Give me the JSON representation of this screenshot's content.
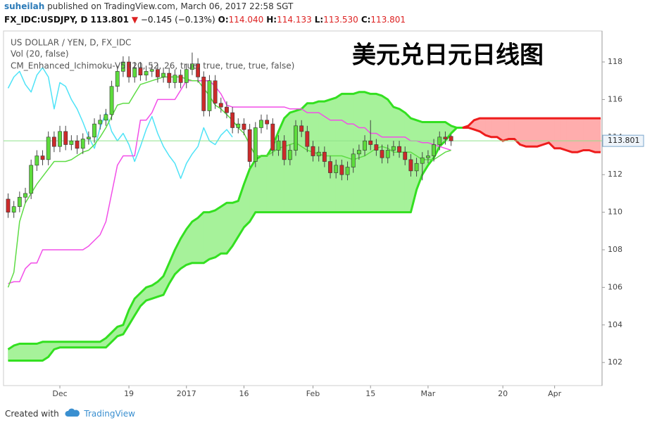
{
  "header": {
    "user": "suheilah",
    "published": "published on TradingView.com, March 06, 2017 22:58 SGT",
    "symbol": "FX_IDC:USDJPY, D",
    "last": "113.801",
    "change": "−0.145 (−0.13%)",
    "ohlc": [
      {
        "label": "O:",
        "value": "114.040"
      },
      {
        "label": "H:",
        "value": "114.133"
      },
      {
        "label": "L:",
        "value": "113.530"
      },
      {
        "label": "C:",
        "value": "113.801"
      }
    ]
  },
  "footer": {
    "created": "Created with",
    "brand": "TradingView"
  },
  "chart_data": {
    "type": "candlestick",
    "title": "US DOLLAR / YEN, D, FX_IDC",
    "subtitles": [
      "Vol (20, false)",
      "CM_Enhanced_Ichimoku-V5 (20, 52, 26, true, true, true, true, false)"
    ],
    "annotation": "美元兑日元日线图",
    "categories": [
      null,
      null,
      null,
      null,
      null,
      null,
      null,
      null,
      null,
      "Dec",
      null,
      null,
      null,
      null,
      null,
      null,
      null,
      null,
      null,
      null,
      null,
      "19",
      null,
      null,
      null,
      null,
      null,
      null,
      null,
      null,
      null,
      "2017",
      null,
      null,
      null,
      null,
      null,
      null,
      null,
      null,
      null,
      "16",
      null,
      null,
      null,
      null,
      null,
      null,
      null,
      null,
      null,
      null,
      null,
      "Feb",
      null,
      null,
      null,
      null,
      null,
      null,
      null,
      null,
      null,
      "15",
      null,
      null,
      null,
      null,
      null,
      null,
      null,
      null,
      null,
      "Mar",
      null,
      null,
      null,
      null,
      null,
      null,
      null,
      null,
      null,
      null,
      null,
      null,
      "20",
      null,
      null,
      null,
      null,
      null,
      null,
      null,
      null,
      "Apr",
      null,
      null,
      null,
      null,
      null,
      null,
      null,
      null
    ],
    "open": [
      110.7,
      110.0,
      110.3,
      110.8,
      111.0,
      112.5,
      113.0,
      112.8,
      114.0,
      113.5,
      114.3,
      113.6,
      113.8,
      113.4,
      113.9,
      114.0,
      114.7,
      114.9,
      115.2,
      116.7,
      117.5,
      118.0,
      117.2,
      117.7,
      117.3,
      117.5,
      117.6,
      117.2,
      117.4,
      116.9,
      117.3,
      116.9,
      117.6,
      117.9,
      117.2,
      115.4,
      117.0,
      115.8,
      115.6,
      115.3,
      114.5,
      114.7,
      114.4,
      112.7,
      114.5,
      114.9,
      114.7,
      113.3,
      113.8,
      112.8,
      113.3,
      114.6,
      114.3,
      113.5,
      113.0,
      113.2,
      112.7,
      112.1,
      112.5,
      112.0,
      112.4,
      113.1,
      113.3,
      113.8,
      113.6,
      113.3,
      112.9,
      113.3,
      113.5,
      113.2,
      112.8,
      112.2,
      112.6,
      112.9,
      113.0,
      113.6,
      114.0,
      114.04,
      null,
      null,
      null,
      null,
      null,
      null,
      null,
      null,
      null,
      null,
      null,
      null,
      null,
      null,
      null,
      null,
      null,
      null,
      null,
      null,
      null,
      null,
      null,
      null,
      null,
      null
    ],
    "high": [
      111.0,
      110.6,
      111.1,
      111.3,
      112.8,
      113.3,
      113.3,
      114.3,
      114.3,
      114.6,
      114.6,
      114.1,
      114.1,
      114.2,
      114.3,
      115.0,
      115.2,
      115.5,
      117.0,
      117.8,
      118.3,
      118.3,
      118.0,
      118.0,
      117.8,
      117.9,
      117.9,
      117.7,
      117.7,
      117.6,
      117.6,
      117.9,
      118.5,
      118.2,
      117.5,
      117.3,
      117.3,
      116.1,
      115.9,
      115.6,
      115.0,
      115.0,
      114.7,
      114.8,
      115.2,
      115.2,
      115.0,
      114.1,
      114.1,
      113.6,
      114.9,
      114.9,
      114.6,
      113.8,
      113.5,
      113.5,
      113.0,
      112.8,
      112.8,
      112.7,
      113.4,
      113.6,
      114.1,
      114.9,
      113.9,
      113.6,
      113.6,
      113.8,
      113.8,
      113.5,
      113.1,
      112.9,
      113.2,
      113.3,
      113.9,
      114.3,
      114.3,
      114.133,
      null,
      null,
      null,
      null,
      null,
      null,
      null,
      null,
      null,
      null,
      null,
      null,
      null,
      null,
      null,
      null,
      null,
      null,
      null,
      null,
      null,
      null,
      null,
      null,
      null,
      null
    ],
    "low": [
      109.7,
      109.7,
      110.0,
      110.5,
      110.7,
      112.2,
      112.5,
      112.5,
      113.2,
      113.2,
      113.3,
      113.3,
      113.1,
      113.1,
      113.6,
      113.7,
      114.4,
      114.6,
      114.9,
      116.4,
      117.2,
      116.9,
      116.9,
      117.0,
      117.0,
      117.2,
      116.9,
      116.9,
      116.6,
      116.6,
      116.6,
      116.6,
      117.3,
      116.9,
      115.1,
      115.1,
      115.5,
      115.3,
      115.0,
      114.2,
      114.2,
      114.1,
      112.4,
      112.4,
      114.2,
      114.4,
      113.0,
      113.0,
      112.5,
      112.5,
      113.0,
      114.0,
      113.2,
      112.7,
      112.7,
      112.4,
      111.8,
      111.8,
      111.7,
      111.7,
      112.1,
      112.8,
      113.0,
      113.3,
      113.0,
      112.6,
      112.6,
      113.0,
      112.9,
      112.5,
      111.9,
      111.9,
      111.7,
      112.6,
      112.7,
      113.3,
      113.6,
      113.53,
      null,
      null,
      null,
      null,
      null,
      null,
      null,
      null,
      null,
      null,
      null,
      null,
      null,
      null,
      null,
      null,
      null,
      null,
      null,
      null,
      null,
      null,
      null,
      null,
      null,
      null
    ],
    "close": [
      110.0,
      110.3,
      110.8,
      111.0,
      112.5,
      113.0,
      112.8,
      114.0,
      113.5,
      114.3,
      113.6,
      113.8,
      113.4,
      113.9,
      114.0,
      114.7,
      114.9,
      115.2,
      116.7,
      117.5,
      118.0,
      117.2,
      117.7,
      117.3,
      117.5,
      117.6,
      117.2,
      117.4,
      116.9,
      117.3,
      116.9,
      117.6,
      117.9,
      117.2,
      115.4,
      117.0,
      115.8,
      115.6,
      115.3,
      114.5,
      114.7,
      114.4,
      112.7,
      114.5,
      114.9,
      114.7,
      113.3,
      113.8,
      112.8,
      113.3,
      114.6,
      114.3,
      113.5,
      113.0,
      113.2,
      112.7,
      112.1,
      112.5,
      112.0,
      112.4,
      113.1,
      113.3,
      113.8,
      113.6,
      113.3,
      112.9,
      113.3,
      113.5,
      113.2,
      112.8,
      112.2,
      112.6,
      112.9,
      113.0,
      113.6,
      114.0,
      113.9,
      113.801,
      null,
      null,
      null,
      null,
      null,
      null,
      null,
      null,
      null,
      null,
      null,
      null,
      null,
      null,
      null,
      null,
      null,
      null,
      null,
      null,
      null,
      null,
      null,
      null,
      null,
      null
    ],
    "up_color": "#5ddc3c",
    "down_color": "#cc2a2a",
    "wick_color": "#444444",
    "series": [
      {
        "color": "#4fe3f7",
        "width": 1.5,
        "values": [
          116.6,
          117.2,
          117.5,
          116.8,
          116.4,
          117.3,
          117.7,
          117.2,
          115.5,
          116.9,
          116.7,
          116.0,
          115.5,
          114.8,
          114.0,
          113.4,
          114.5,
          115.3,
          114.3,
          113.8,
          114.2,
          113.6,
          112.7,
          113.5,
          114.4,
          115.1,
          114.2,
          113.5,
          113.0,
          112.6,
          111.8,
          112.6,
          113.1,
          113.5,
          114.5,
          113.8,
          113.6,
          114.1,
          114.4,
          114.0,
          null,
          null,
          null,
          null,
          null,
          null,
          null,
          null,
          null,
          null,
          null,
          null,
          null,
          null,
          null,
          null,
          null,
          null,
          null,
          null,
          null,
          null,
          null,
          null,
          null,
          null,
          null,
          null,
          null,
          null,
          null,
          null,
          null,
          null,
          null,
          null,
          null,
          null,
          null,
          null,
          null,
          null,
          null,
          null,
          null,
          null,
          null,
          null,
          null,
          null,
          null,
          null,
          null,
          null,
          null,
          null,
          null,
          null,
          null,
          null,
          null,
          null,
          null,
          null
        ]
      },
      {
        "color": "#f24ee8",
        "width": 1.5,
        "values": [
          106.2,
          106.3,
          106.3,
          107.0,
          107.3,
          107.3,
          108.0,
          108.0,
          108.0,
          108.0,
          108.0,
          108.0,
          108.0,
          108.0,
          108.2,
          108.5,
          108.8,
          109.5,
          111.0,
          112.5,
          113.0,
          113.0,
          113.0,
          114.9,
          114.9,
          115.3,
          116.0,
          116.0,
          116.0,
          116.0,
          116.5,
          117.0,
          117.0,
          117.0,
          117.0,
          117.0,
          116.7,
          116.3,
          115.7,
          115.6,
          115.6,
          115.6,
          115.6,
          115.6,
          115.6,
          115.6,
          115.6,
          115.6,
          115.6,
          115.5,
          115.5,
          115.5,
          115.3,
          115.3,
          115.3,
          115.1,
          114.9,
          114.9,
          114.9,
          114.7,
          114.7,
          114.5,
          114.5,
          114.2,
          114.2,
          114.0,
          114.0,
          114.0,
          114.0,
          114.0,
          113.8,
          113.8,
          113.7,
          113.7,
          113.6,
          113.5,
          113.4,
          113.3,
          null,
          null,
          null,
          null,
          null,
          null,
          null,
          null,
          null,
          null,
          null,
          null,
          null,
          null,
          null,
          null,
          null,
          null,
          null,
          null,
          null,
          null,
          null,
          null,
          null,
          null
        ]
      },
      {
        "color": "#5edc45",
        "width": 1.5,
        "values": [
          106.0,
          106.8,
          109.5,
          110.5,
          111.0,
          111.5,
          111.9,
          112.3,
          112.7,
          112.7,
          112.7,
          112.8,
          113.0,
          113.2,
          113.3,
          113.6,
          114.0,
          114.5,
          115.1,
          115.7,
          115.8,
          115.8,
          116.3,
          116.8,
          116.9,
          117.0,
          117.1,
          117.2,
          117.2,
          117.2,
          117.2,
          117.1,
          117.0,
          117.0,
          116.6,
          116.2,
          115.7,
          115.5,
          115.2,
          114.9,
          114.5,
          114.2,
          113.6,
          113.0,
          113.0,
          113.0,
          113.2,
          113.4,
          113.5,
          113.6,
          113.7,
          113.5,
          113.3,
          113.2,
          113.1,
          113.0,
          113.0,
          113.0,
          113.0,
          112.9,
          112.8,
          112.9,
          113.0,
          113.2,
          113.4,
          113.5,
          113.4,
          113.2,
          113.2,
          113.2,
          113.2,
          113.0,
          112.8,
          112.8,
          112.8,
          113.0,
          113.2,
          113.3,
          null,
          null,
          null,
          null,
          null,
          null,
          null,
          null,
          null,
          null,
          null,
          null,
          null,
          null,
          null,
          null,
          null,
          null,
          null,
          null,
          null,
          null,
          null,
          null,
          null,
          null
        ]
      }
    ],
    "cloud": {
      "up_color": "#33e020",
      "down_color": "#ee1c1c",
      "up_fill": "#a6f29a",
      "down_fill": "#ffadad",
      "span_a": [
        102.7,
        102.9,
        103.0,
        103.0,
        103.0,
        103.0,
        103.1,
        103.1,
        103.1,
        103.1,
        103.1,
        103.1,
        103.1,
        103.1,
        103.1,
        103.1,
        103.1,
        103.3,
        103.6,
        103.9,
        104.0,
        104.8,
        105.4,
        105.7,
        106.0,
        106.1,
        106.3,
        106.6,
        107.3,
        108.0,
        108.6,
        109.1,
        109.5,
        109.7,
        110.0,
        110.0,
        110.1,
        110.3,
        110.5,
        110.5,
        110.6,
        111.5,
        112.3,
        112.8,
        113.0,
        113.0,
        113.5,
        114.3,
        115.0,
        115.3,
        115.4,
        115.5,
        115.8,
        115.8,
        115.9,
        115.9,
        116.0,
        116.1,
        116.3,
        116.3,
        116.3,
        116.4,
        116.4,
        116.3,
        116.3,
        116.2,
        116.0,
        115.6,
        115.5,
        115.3,
        115.0,
        114.9,
        114.8,
        114.8,
        114.8,
        114.8,
        114.8,
        114.6,
        114.5,
        114.5,
        114.5,
        114.4,
        114.3,
        114.1,
        114.0,
        114.0,
        113.8,
        113.9,
        113.9,
        113.6,
        113.5,
        113.5,
        113.5,
        113.6,
        113.7,
        113.4,
        113.4,
        113.3,
        113.2,
        113.2,
        113.3,
        113.3,
        113.2,
        113.2
      ],
      "span_b": [
        102.1,
        102.1,
        102.1,
        102.1,
        102.1,
        102.1,
        102.1,
        102.3,
        102.7,
        102.8,
        102.8,
        102.8,
        102.8,
        102.8,
        102.8,
        102.8,
        102.8,
        102.8,
        103.1,
        103.4,
        103.5,
        104.0,
        104.5,
        105.0,
        105.3,
        105.4,
        105.5,
        105.6,
        106.2,
        106.7,
        107.0,
        107.2,
        107.3,
        107.3,
        107.3,
        107.5,
        107.6,
        107.8,
        107.8,
        108.2,
        108.7,
        109.2,
        109.5,
        110.0,
        110.0,
        110.0,
        110.0,
        110.0,
        110.0,
        110.0,
        110.0,
        110.0,
        110.0,
        110.0,
        110.0,
        110.0,
        110.0,
        110.0,
        110.0,
        110.0,
        110.0,
        110.0,
        110.0,
        110.0,
        110.0,
        110.0,
        110.0,
        110.0,
        110.0,
        110.0,
        110.0,
        111.2,
        112.0,
        112.5,
        112.9,
        113.5,
        113.8,
        114.2,
        114.5,
        114.5,
        114.6,
        114.9,
        115.0,
        115.0,
        115.0,
        115.0,
        115.0,
        115.0,
        115.0,
        115.0,
        115.0,
        115.0,
        115.0,
        115.0,
        115.0,
        115.0,
        115.0,
        115.0,
        115.0,
        115.0,
        115.0,
        115.0,
        115.0,
        115.0
      ]
    },
    "last_price": 113.801,
    "last_color": "#8fe28a",
    "ylim": [
      100.77,
      119.65
    ],
    "yticks": [
      102,
      104,
      106,
      108,
      110,
      112,
      114,
      116,
      118
    ],
    "grid": false
  }
}
